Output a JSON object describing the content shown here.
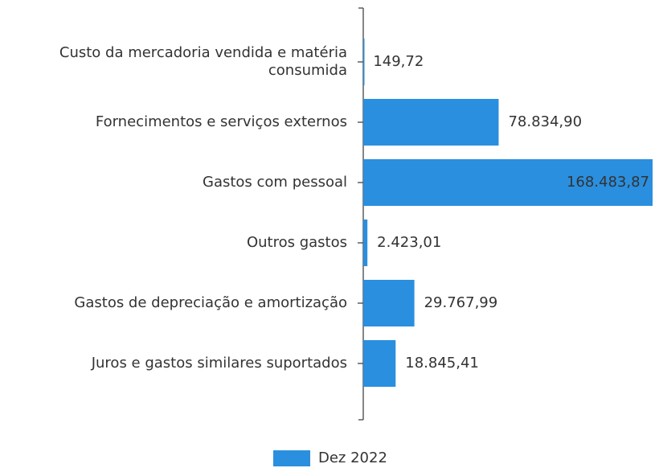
{
  "chart_data": {
    "type": "bar",
    "orientation": "horizontal",
    "categories": [
      "Custo da mercadoria vendida e matéria consumida",
      "Fornecimentos e serviços externos",
      "Gastos com pessoal",
      "Outros gastos",
      "Gastos de depreciação e amortização",
      "Juros e gastos similares suportados"
    ],
    "series": [
      {
        "name": "Dez 2022",
        "color": "#2a8fdf",
        "values": [
          149.72,
          78834.9,
          168483.87,
          2423.01,
          29767.99,
          18845.41
        ],
        "value_labels": [
          "149,72",
          "78.834,90",
          "168.483,87",
          "2.423,01",
          "29.767,99",
          "18.845,41"
        ]
      }
    ],
    "legend": "bottom"
  }
}
